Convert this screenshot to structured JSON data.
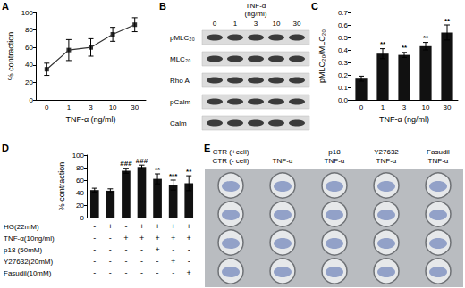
{
  "chart_data": [
    {
      "panel_label": "A",
      "type": "line",
      "categories": [
        "0",
        "1",
        "3",
        "10",
        "30"
      ],
      "values": [
        35,
        57,
        60,
        75,
        86
      ],
      "errors": [
        7,
        12,
        10,
        8,
        8
      ],
      "color": "#333333",
      "marker": "square",
      "x_label": "TNF-α (ng/ml)",
      "y_label": "% contraction",
      "ylim": [
        0,
        100
      ],
      "yticks": [
        0,
        20,
        40,
        60,
        80,
        100
      ]
    },
    {
      "panel_label": "C",
      "type": "bar",
      "categories": [
        "0",
        "1",
        "3",
        "10",
        "30"
      ],
      "values": [
        0.17,
        0.37,
        0.36,
        0.43,
        0.54
      ],
      "errors": [
        0.02,
        0.04,
        0.02,
        0.03,
        0.06
      ],
      "annotations": [
        null,
        "**",
        "**",
        "**",
        "**"
      ],
      "color": "#111111",
      "x_label": "TNF-α (ng/ml)",
      "y_label": "pMLC₂₀/MLC₂₀",
      "ylim": [
        0,
        0.7
      ],
      "yticks": [
        {
          "value": 0,
          "label": "0.0"
        },
        {
          "value": 0.1,
          "label": "0.1"
        },
        {
          "value": 0.2,
          "label": "0.2"
        },
        {
          "value": 0.3,
          "label": "0.3"
        },
        {
          "value": 0.4,
          "label": "0.4"
        },
        {
          "value": 0.5,
          "label": "0.5"
        },
        {
          "value": 0.6,
          "label": "0.6"
        },
        {
          "value": 0.7,
          "label": "0.7"
        }
      ]
    },
    {
      "panel_label": "D",
      "type": "bar",
      "categories": [
        null,
        null,
        null,
        null,
        null,
        null,
        null
      ],
      "values": [
        44,
        43,
        75,
        81,
        62,
        52,
        55
      ],
      "errors": [
        3,
        3,
        4,
        3,
        8,
        8,
        12
      ],
      "annotations": [
        null,
        null,
        "###",
        "###",
        "**",
        "***",
        "**"
      ],
      "color": "#111111",
      "y_label": "% contraction",
      "ylim": [
        0,
        100
      ],
      "yticks": [
        0,
        20,
        40,
        60,
        80,
        100
      ],
      "conditions": [
        {
          "label": "HG(22mM)",
          "marks": [
            "-",
            "+",
            "-",
            "+",
            "+",
            "+",
            "+"
          ]
        },
        {
          "label": "TNF-α(10ng/ml)",
          "marks": [
            "-",
            "-",
            "+",
            "+",
            "+",
            "+",
            "+"
          ]
        },
        {
          "label": "p18 (50mM)",
          "marks": [
            "-",
            "-",
            "-",
            "-",
            "+",
            "-",
            "-"
          ]
        },
        {
          "label": "Y27632(20mM)",
          "marks": [
            "-",
            "-",
            "-",
            "-",
            "-",
            "+",
            "-"
          ]
        },
        {
          "label": "Fasudil(10mM)",
          "marks": [
            "-",
            "-",
            "-",
            "-",
            "-",
            "-",
            "+"
          ]
        }
      ]
    }
  ],
  "blot": {
    "panel_label": "B",
    "header": [
      "TNF-α",
      "(ng/ml)"
    ],
    "lanes": [
      "0",
      "1",
      "3",
      "10",
      "30"
    ],
    "rows": [
      "pMLC₂₀",
      "MLC₂₀",
      "Rho A",
      "pCalm",
      "Calm"
    ]
  },
  "plate": {
    "panel_label": "E",
    "columns": [
      [
        "CTR (+cell)",
        "CTR (- cell)"
      ],
      [
        "TNF-α"
      ],
      [
        "p18",
        "TNF-α"
      ],
      [
        "Y27632",
        "TNF-α"
      ],
      [
        "Fasudil",
        "TNF-α"
      ]
    ],
    "rows": 4
  }
}
